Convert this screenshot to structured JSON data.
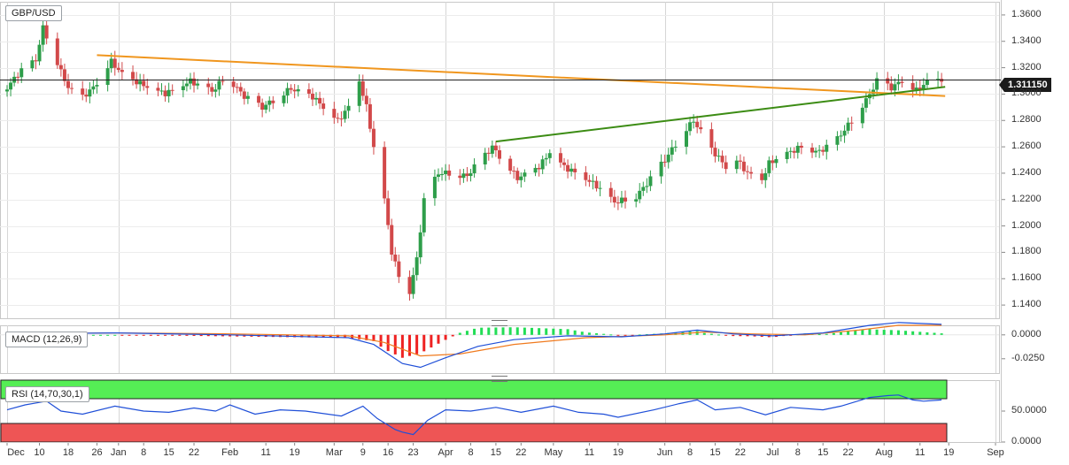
{
  "panels": {
    "main": {
      "label": "GBP/USD",
      "current_price": "1.311150"
    },
    "macd": {
      "label": "MACD (12,26,9)"
    },
    "rsi": {
      "label": "RSI (14,70,30,1)"
    }
  },
  "chart_data": [
    {
      "type": "candlestick",
      "title": "GBP/USD",
      "ylim": [
        1.13,
        1.37
      ],
      "y_ticks": [
        "1.1400",
        "1.1600",
        "1.1800",
        "1.2000",
        "1.2200",
        "1.2400",
        "1.2600",
        "1.2800",
        "1.3000",
        "1.3200",
        "1.3400",
        "1.3600"
      ],
      "x_ticks": [
        "Dec",
        "10",
        "18",
        "26",
        "Jan",
        "8",
        "15",
        "22",
        "Feb",
        "11",
        "19",
        "Mar",
        "9",
        "16",
        "23",
        "Apr",
        "8",
        "15",
        "22",
        "May",
        "11",
        "19",
        "Jun",
        "8",
        "15",
        "22",
        "Jul",
        "8",
        "15",
        "22",
        "Aug",
        "11",
        "19",
        "Sep"
      ],
      "current_price": 1.31115,
      "price_trend": [
        [
          "Dec 1",
          1.302
        ],
        [
          "Dec 6",
          1.318
        ],
        [
          "Dec 10",
          1.326
        ],
        [
          "Dec 12",
          1.35
        ],
        [
          "Dec 14",
          1.338
        ],
        [
          "Dec 18",
          1.31
        ],
        [
          "Dec 22",
          1.295
        ],
        [
          "Dec 26",
          1.305
        ],
        [
          "Dec 31",
          1.325
        ],
        [
          "Jan 3",
          1.315
        ],
        [
          "Jan 8",
          1.308
        ],
        [
          "Jan 15",
          1.3
        ],
        [
          "Jan 22",
          1.31
        ],
        [
          "Jan 28",
          1.302
        ],
        [
          "Feb 1",
          1.314
        ],
        [
          "Feb 6",
          1.298
        ],
        [
          "Feb 11",
          1.29
        ],
        [
          "Feb 19",
          1.304
        ],
        [
          "Feb 25",
          1.298
        ],
        [
          "Mar 3",
          1.28
        ],
        [
          "Mar 6",
          1.29
        ],
        [
          "Mar 9",
          1.31
        ],
        [
          "Mar 11",
          1.29
        ],
        [
          "Mar 13",
          1.26
        ],
        [
          "Mar 16",
          1.22
        ],
        [
          "Mar 18",
          1.18
        ],
        [
          "Mar 20",
          1.162
        ],
        [
          "Mar 23",
          1.15
        ],
        [
          "Mar 25",
          1.175
        ],
        [
          "Mar 27",
          1.22
        ],
        [
          "Mar 31",
          1.24
        ],
        [
          "Apr 3",
          1.24
        ],
        [
          "Apr 8",
          1.238
        ],
        [
          "Apr 15",
          1.26
        ],
        [
          "Apr 22",
          1.236
        ],
        [
          "Apr 28",
          1.245
        ],
        [
          "May 1",
          1.256
        ],
        [
          "May 5",
          1.245
        ],
        [
          "May 11",
          1.236
        ],
        [
          "May 15",
          1.228
        ],
        [
          "May 19",
          1.218
        ],
        [
          "May 25",
          1.222
        ],
        [
          "May 29",
          1.236
        ],
        [
          "Jun 2",
          1.25
        ],
        [
          "Jun 5",
          1.262
        ],
        [
          "Jun 8",
          1.274
        ],
        [
          "Jun 10",
          1.28
        ],
        [
          "Jun 15",
          1.258
        ],
        [
          "Jun 19",
          1.245
        ],
        [
          "Jun 22",
          1.25
        ],
        [
          "Jun 25",
          1.24
        ],
        [
          "Jun 29",
          1.235
        ],
        [
          "Jul 1",
          1.248
        ],
        [
          "Jul 6",
          1.255
        ],
        [
          "Jul 10",
          1.26
        ],
        [
          "Jul 15",
          1.256
        ],
        [
          "Jul 20",
          1.266
        ],
        [
          "Jul 24",
          1.28
        ],
        [
          "Jul 28",
          1.295
        ],
        [
          "Jul 31",
          1.31
        ],
        [
          "Aug 4",
          1.305
        ],
        [
          "Aug 7",
          1.31
        ],
        [
          "Aug 11",
          1.303
        ],
        [
          "Aug 14",
          1.309
        ],
        [
          "Aug 17",
          1.311
        ]
      ],
      "trendlines": [
        {
          "color": "#f0961e",
          "from": [
            "Dec 26",
            1.3295
          ],
          "to": [
            "Aug 18",
            1.2985
          ]
        },
        {
          "color": "#3c8c14",
          "from": [
            "Apr 15",
            1.264
          ],
          "to": [
            "Aug 18",
            1.3055
          ]
        }
      ]
    },
    {
      "type": "line",
      "title": "MACD (12,26,9)",
      "ylim": [
        -0.04,
        0.01
      ],
      "y_ticks": [
        "0.0000",
        "-0.0250"
      ],
      "series": [
        {
          "colors": {
            "macd": "#1f4fd8",
            "signal": "#f07a1e",
            "hist_pos": "#22dd55",
            "hist_neg": "#ee2222"
          }
        }
      ],
      "macd": [
        [
          "Dec 1",
          0.001
        ],
        [
          "Jan 1",
          0.002
        ],
        [
          "Feb 1",
          0.0
        ],
        [
          "Mar 5",
          -0.003
        ],
        [
          "Mar 12",
          -0.01
        ],
        [
          "Mar 20",
          -0.03
        ],
        [
          "Mar 25",
          -0.034
        ],
        [
          "Apr 1",
          -0.024
        ],
        [
          "Apr 10",
          -0.012
        ],
        [
          "Apr 20",
          -0.005
        ],
        [
          "May 5",
          -0.001
        ],
        [
          "May 20",
          -0.002
        ],
        [
          "Jun 1",
          0.001
        ],
        [
          "Jun 10",
          0.005
        ],
        [
          "Jun 20",
          0.001
        ],
        [
          "Jul 1",
          -0.001
        ],
        [
          "Jul 15",
          0.002
        ],
        [
          "Jul 28",
          0.01
        ],
        [
          "Aug 5",
          0.013
        ],
        [
          "Aug 17",
          0.011
        ]
      ],
      "signal": [
        [
          "Dec 1",
          0.001
        ],
        [
          "Jan 1",
          0.002
        ],
        [
          "Feb 1",
          0.001
        ],
        [
          "Mar 5",
          -0.001
        ],
        [
          "Mar 15",
          -0.008
        ],
        [
          "Mar 25",
          -0.022
        ],
        [
          "Apr 5",
          -0.02
        ],
        [
          "Apr 20",
          -0.01
        ],
        [
          "May 10",
          -0.003
        ],
        [
          "Jun 1",
          0.0
        ],
        [
          "Jun 12",
          0.003
        ],
        [
          "Jun 25",
          0.001
        ],
        [
          "Jul 10",
          0.0
        ],
        [
          "Jul 25",
          0.005
        ],
        [
          "Aug 5",
          0.01
        ],
        [
          "Aug 17",
          0.01
        ]
      ]
    },
    {
      "type": "line",
      "title": "RSI (14,70,30,1)",
      "ylim": [
        0,
        100
      ],
      "y_ticks": [
        "50.0000",
        "0.0000"
      ],
      "overbought": 70,
      "oversold": 30,
      "series": [
        {
          "colors": {
            "line": "#1f4fd8",
            "ob_zone": "#55ee55",
            "os_zone": "#ee5555"
          }
        }
      ],
      "rsi": [
        [
          "Dec 1",
          52
        ],
        [
          "Dec 6",
          60
        ],
        [
          "Dec 10",
          64
        ],
        [
          "Dec 12",
          66
        ],
        [
          "Dec 16",
          50
        ],
        [
          "Dec 22",
          45
        ],
        [
          "Dec 31",
          58
        ],
        [
          "Jan 8",
          50
        ],
        [
          "Jan 15",
          48
        ],
        [
          "Jan 22",
          55
        ],
        [
          "Jan 28",
          50
        ],
        [
          "Feb 1",
          60
        ],
        [
          "Feb 8",
          45
        ],
        [
          "Feb 15",
          52
        ],
        [
          "Feb 22",
          50
        ],
        [
          "Mar 3",
          42
        ],
        [
          "Mar 9",
          58
        ],
        [
          "Mar 13",
          38
        ],
        [
          "Mar 18",
          20
        ],
        [
          "Mar 20",
          16
        ],
        [
          "Mar 23",
          12
        ],
        [
          "Mar 27",
          35
        ],
        [
          "Apr 1",
          52
        ],
        [
          "Apr 8",
          50
        ],
        [
          "Apr 15",
          56
        ],
        [
          "Apr 22",
          48
        ],
        [
          "May 1",
          58
        ],
        [
          "May 8",
          48
        ],
        [
          "May 15",
          45
        ],
        [
          "May 19",
          40
        ],
        [
          "May 29",
          52
        ],
        [
          "Jun 5",
          62
        ],
        [
          "Jun 10",
          68
        ],
        [
          "Jun 15",
          52
        ],
        [
          "Jun 22",
          56
        ],
        [
          "Jun 29",
          44
        ],
        [
          "Jul 6",
          56
        ],
        [
          "Jul 15",
          52
        ],
        [
          "Jul 20",
          58
        ],
        [
          "Jul 28",
          72
        ],
        [
          "Aug 2",
          75
        ],
        [
          "Aug 5",
          76
        ],
        [
          "Aug 9",
          68
        ],
        [
          "Aug 12",
          66
        ],
        [
          "Aug 17",
          68
        ]
      ]
    }
  ]
}
